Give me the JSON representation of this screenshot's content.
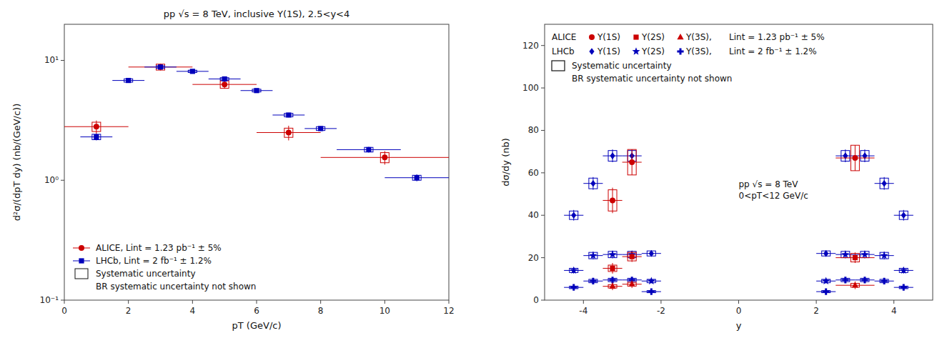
{
  "chart_data": [
    {
      "type": "scatter",
      "title": "pp √s = 8 TeV, inclusive Υ(1S), 2.5<y<4",
      "x_label": "pT (GeV/c)",
      "y_label": "d²σ/(dpT dy) (nb/(GeV/c))",
      "log": "y",
      "xlim": [
        0,
        12
      ],
      "ylim": [
        0.1,
        20
      ],
      "xticks": [
        0,
        2,
        4,
        6,
        8,
        10,
        12
      ],
      "yticks": [
        {
          "value": 0.1,
          "label": "10⁻¹"
        },
        {
          "value": 1,
          "label": "10⁰"
        },
        {
          "value": 10,
          "label": "10¹"
        }
      ],
      "grid": false,
      "legend": "lower left",
      "syst_label": "Systematic uncertainty",
      "legend_note": "BR systematic uncertainty not shown",
      "series": [
        {
          "name": "ALICE, Lint = 1.23 pb⁻¹ ± 5%",
          "color": "#cc0000",
          "marker": "circle",
          "x": [
            1.0,
            3.0,
            5.0,
            7.0,
            10.0
          ],
          "values": [
            2.8,
            8.8,
            6.3,
            2.5,
            1.55
          ],
          "xerr": [
            1.0,
            1.0,
            1.0,
            1.0,
            2.0
          ],
          "yerr": [
            0.35,
            0.55,
            0.5,
            0.35,
            0.2
          ],
          "yerr_syst": [
            0.25,
            0.5,
            0.45,
            0.22,
            0.15
          ]
        },
        {
          "name": "LHCb, Lint = 2 fb⁻¹ ± 1.2%",
          "color": "#0000bb",
          "marker": "square",
          "x": [
            1.0,
            2.0,
            3.0,
            4.0,
            5.0,
            6.0,
            7.0,
            8.0,
            9.5,
            11.0
          ],
          "values": [
            2.3,
            6.8,
            8.8,
            8.1,
            7.0,
            5.6,
            3.5,
            2.7,
            1.8,
            1.05
          ],
          "xerr": [
            0.5,
            0.5,
            0.5,
            0.5,
            0.5,
            0.5,
            0.5,
            0.5,
            1.0,
            1.0
          ],
          "yerr": [
            0.15,
            0.25,
            0.25,
            0.2,
            0.2,
            0.18,
            0.15,
            0.12,
            0.1,
            0.07
          ],
          "yerr_syst": [
            0.12,
            0.22,
            0.22,
            0.18,
            0.18,
            0.15,
            0.12,
            0.1,
            0.08,
            0.05
          ]
        }
      ]
    },
    {
      "type": "scatter",
      "x_label": "y",
      "y_label": "dσ/dy (nb)",
      "xlim": [
        -5,
        5
      ],
      "ylim": [
        0,
        130
      ],
      "xticks": [
        -4,
        -2,
        0,
        2,
        4
      ],
      "yticks": [
        0,
        20,
        40,
        60,
        80,
        100,
        120
      ],
      "grid": false,
      "legend": "upper left",
      "annotations": [
        "pp √s = 8 TeV",
        "0<pT<12 GeV/c"
      ],
      "legend_groups": [
        {
          "name": "ALICE",
          "label": "Lint = 1.23 pb⁻¹ ± 5%"
        },
        {
          "name": "LHCb",
          "label": "Lint = 2 fb⁻¹ ± 1.2%"
        }
      ],
      "syst_label": "Systematic uncertainty",
      "legend_note": "BR systematic uncertainty not shown",
      "series": [
        {
          "name": "Υ(1S)",
          "group": "LHCb",
          "color": "#0000bb",
          "marker": "diamond",
          "x": [
            -4.25,
            -3.75,
            -3.25,
            -2.75,
            -2.25,
            2.25,
            2.75,
            3.25,
            3.75,
            4.25
          ],
          "values": [
            40.0,
            55.0,
            68.0,
            68.0,
            22.0,
            22.0,
            68.0,
            68.0,
            55.0,
            40.0
          ],
          "xerr": [
            0.25,
            0.25,
            0.25,
            0.25,
            0.25,
            0.25,
            0.25,
            0.25,
            0.25,
            0.25
          ],
          "yerr": [
            2.5,
            3.0,
            3.0,
            3.0,
            1.5,
            1.5,
            3.0,
            3.0,
            3.0,
            2.5
          ],
          "yerr_syst": [
            2.0,
            2.5,
            2.5,
            2.5,
            1.2,
            1.2,
            2.5,
            2.5,
            2.5,
            2.0
          ]
        },
        {
          "name": "Υ(2S)",
          "group": "LHCb",
          "color": "#0000bb",
          "marker": "star",
          "x": [
            -4.25,
            -3.75,
            -3.25,
            -2.75,
            -2.25,
            2.25,
            2.75,
            3.25,
            3.75,
            4.25
          ],
          "values": [
            14.0,
            21.0,
            21.5,
            21.5,
            9.0,
            9.0,
            21.5,
            21.5,
            21.0,
            14.0
          ],
          "xerr": [
            0.25,
            0.25,
            0.25,
            0.25,
            0.25,
            0.25,
            0.25,
            0.25,
            0.25,
            0.25
          ],
          "yerr": [
            1.5,
            1.8,
            1.8,
            1.8,
            1.0,
            1.0,
            1.8,
            1.8,
            1.8,
            1.5
          ],
          "yerr_syst": [
            1.0,
            1.5,
            1.5,
            1.5,
            0.8,
            0.8,
            1.5,
            1.5,
            1.5,
            1.0
          ]
        },
        {
          "name": "Υ(3S),",
          "group": "LHCb",
          "color": "#0000bb",
          "marker": "plus",
          "x": [
            -4.25,
            -3.75,
            -3.25,
            -2.75,
            -2.25,
            2.25,
            2.75,
            3.25,
            3.75,
            4.25
          ],
          "values": [
            6.0,
            9.0,
            9.5,
            9.5,
            4.0,
            4.0,
            9.5,
            9.5,
            9.0,
            6.0
          ],
          "xerr": [
            0.25,
            0.25,
            0.25,
            0.25,
            0.25,
            0.25,
            0.25,
            0.25,
            0.25,
            0.25
          ],
          "yerr": [
            1.0,
            1.2,
            1.2,
            1.2,
            0.8,
            0.8,
            1.2,
            1.2,
            1.2,
            1.0
          ],
          "yerr_syst": [
            0.6,
            0.8,
            0.8,
            0.8,
            0.5,
            0.5,
            0.8,
            0.8,
            0.8,
            0.6
          ]
        },
        {
          "name": "Υ(1S)",
          "group": "ALICE",
          "color": "#cc0000",
          "marker": "circle",
          "x": [
            -3.25,
            -2.75,
            3.0
          ],
          "values": [
            47.0,
            65.0,
            67.0
          ],
          "xerr": [
            0.25,
            0.25,
            0.5
          ],
          "yerr": [
            6.0,
            6.0,
            6.0
          ],
          "yerr_syst": [
            5.0,
            6.0,
            6.0
          ]
        },
        {
          "name": "Υ(2S)",
          "group": "ALICE",
          "color": "#cc0000",
          "marker": "square",
          "x": [
            -3.25,
            -2.75,
            3.0
          ],
          "values": [
            15.0,
            20.5,
            20.0
          ],
          "xerr": [
            0.25,
            0.25,
            0.5
          ],
          "yerr": [
            2.5,
            2.5,
            2.5
          ],
          "yerr_syst": [
            1.5,
            2.0,
            2.0
          ]
        },
        {
          "name": "Υ(3S),",
          "group": "ALICE",
          "color": "#cc0000",
          "marker": "triangle",
          "x": [
            -3.25,
            -2.75,
            3.0
          ],
          "values": [
            6.5,
            7.5,
            7.0
          ],
          "xerr": [
            0.25,
            0.25,
            0.5
          ],
          "yerr": [
            1.8,
            1.8,
            1.8
          ],
          "yerr_syst": [
            0.8,
            0.9,
            0.9
          ]
        }
      ]
    }
  ]
}
